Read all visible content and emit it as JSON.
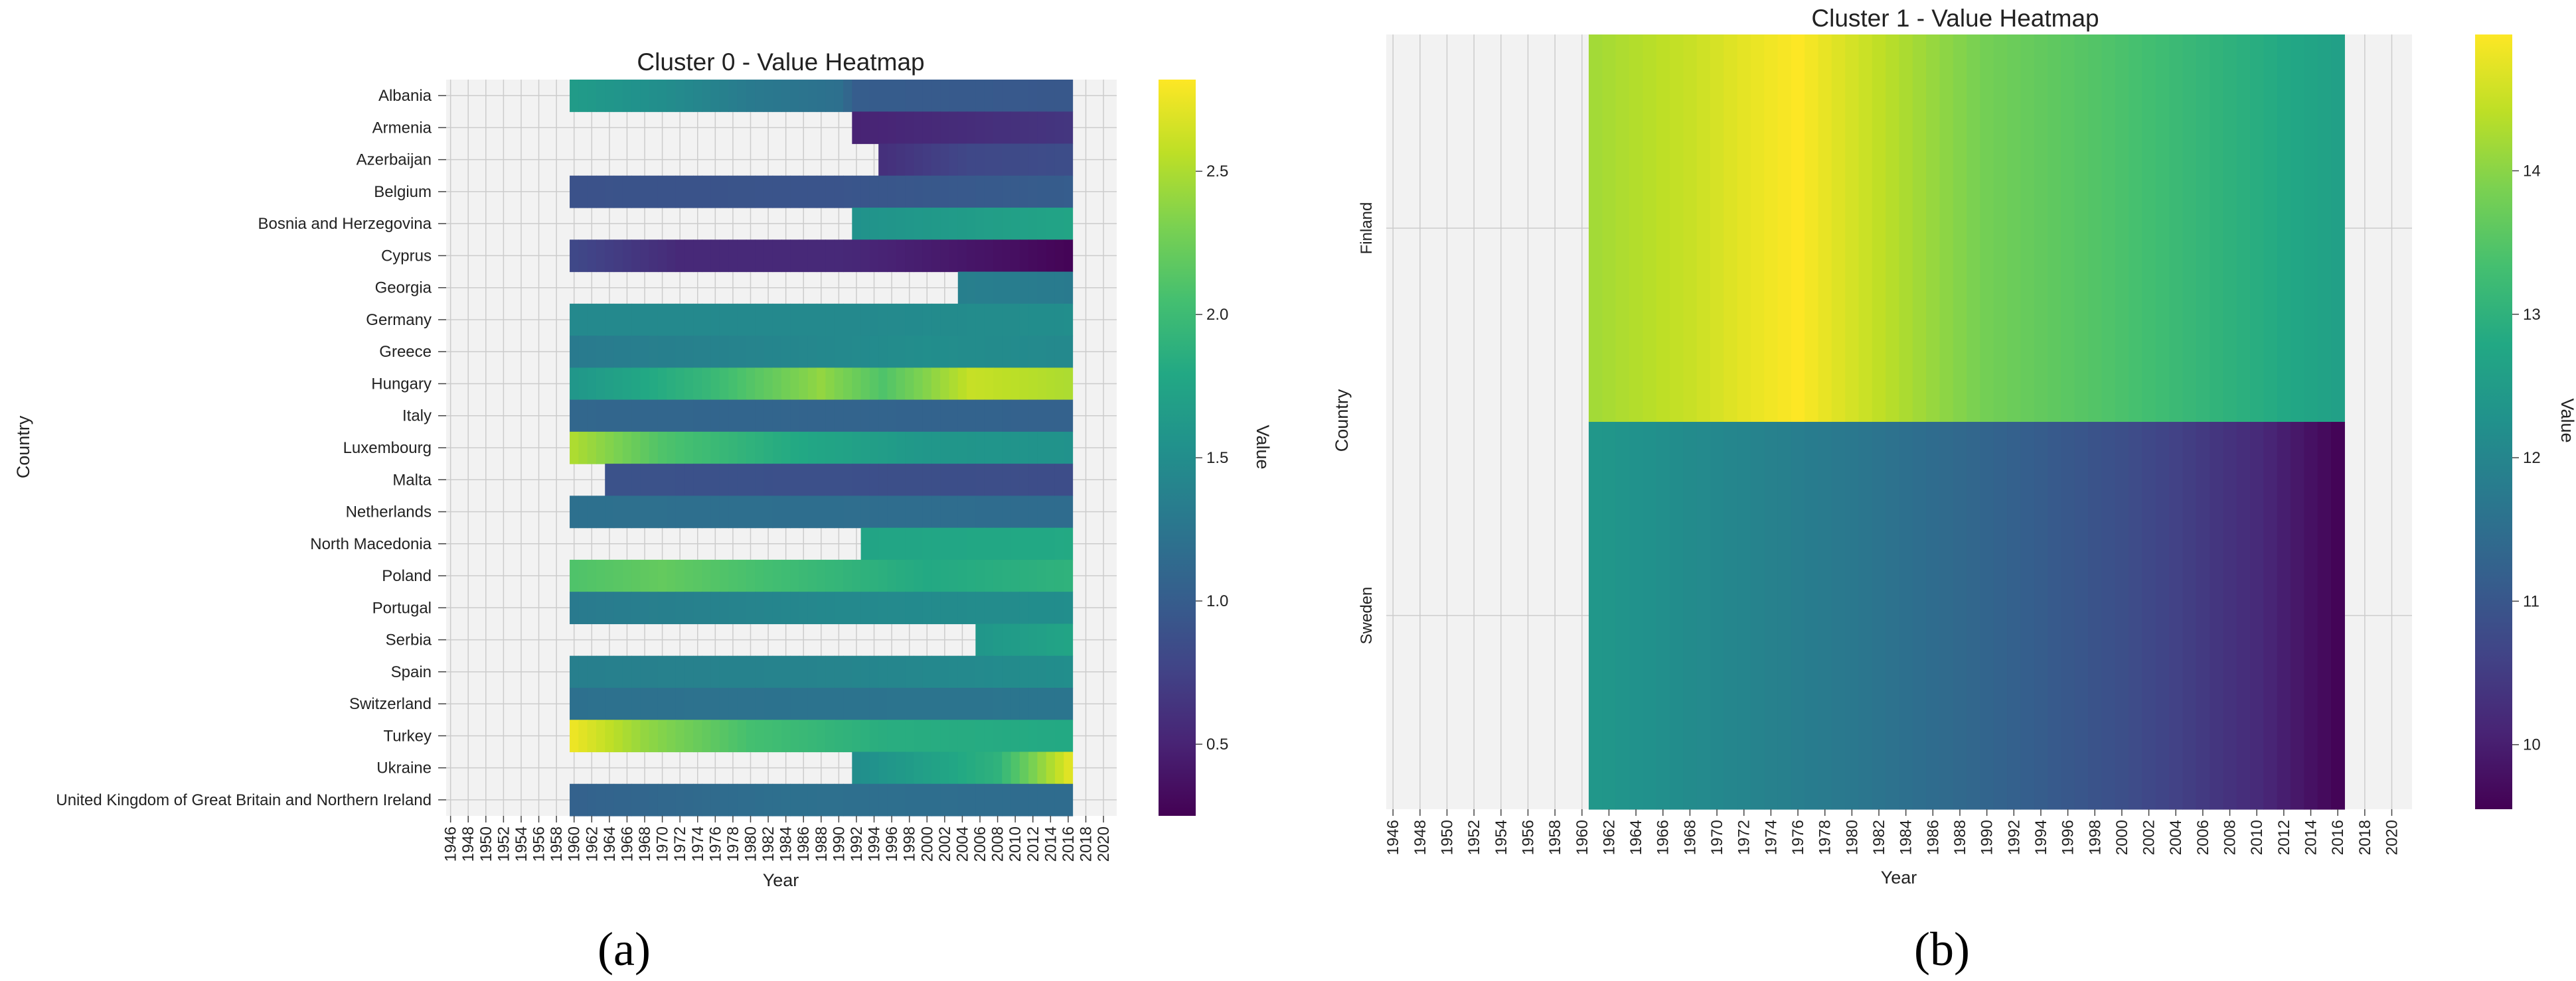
{
  "figure": {
    "panel_labels": [
      "(a)",
      "(b)"
    ]
  },
  "chart_data": [
    {
      "type": "heatmap",
      "title": "Cluster 0 - Value Heatmap",
      "xlabel": "Year",
      "ylabel": "Country",
      "colorbar_label": "Value",
      "colormap": "viridis",
      "vmin": 0.25,
      "vmax": 2.82,
      "colorbar_ticks": [
        "0.5",
        "1.0",
        "1.5",
        "2.0",
        "2.5"
      ],
      "colorbar_tick_values": [
        0.5,
        1.0,
        1.5,
        2.0,
        2.5
      ],
      "year_range": [
        1946,
        2021
      ],
      "x_tick_labels": [
        "1946",
        "1948",
        "1950",
        "1952",
        "1954",
        "1956",
        "1958",
        "1960",
        "1962",
        "1964",
        "1966",
        "1968",
        "1970",
        "1972",
        "1974",
        "1976",
        "1978",
        "1980",
        "1982",
        "1984",
        "1986",
        "1988",
        "1990",
        "1992",
        "1994",
        "1996",
        "1998",
        "2000",
        "2002",
        "2004",
        "2006",
        "2008",
        "2010",
        "2012",
        "2014",
        "2016",
        "2018",
        "2020"
      ],
      "grid": true,
      "missing_color": "#f2f2f2",
      "countries": [
        "Albania",
        "Armenia",
        "Azerbaijan",
        "Belgium",
        "Bosnia and Herzegovina",
        "Cyprus",
        "Georgia",
        "Germany",
        "Greece",
        "Hungary",
        "Italy",
        "Luxembourg",
        "Malta",
        "Netherlands",
        "North Macedonia",
        "Poland",
        "Portugal",
        "Serbia",
        "Spain",
        "Switzerland",
        "Turkey",
        "Ukraine",
        "United Kingdom of Great Britain and Northern Ireland"
      ],
      "series": [
        {
          "start": 1960,
          "end": 2016,
          "keyframes": [
            [
              1960,
              1.65
            ],
            [
              1970,
              1.5
            ],
            [
              1980,
              1.3
            ],
            [
              1990,
              1.2
            ],
            [
              1992,
              1.0
            ],
            [
              2016,
              0.95
            ]
          ]
        },
        {
          "start": 1992,
          "end": 2016,
          "keyframes": [
            [
              1992,
              0.5
            ],
            [
              2000,
              0.55
            ],
            [
              2016,
              0.65
            ]
          ]
        },
        {
          "start": 1995,
          "end": 2016,
          "keyframes": [
            [
              1995,
              0.6
            ],
            [
              2005,
              0.8
            ],
            [
              2016,
              0.85
            ]
          ]
        },
        {
          "start": 1960,
          "end": 2016,
          "keyframes": [
            [
              1960,
              0.9
            ],
            [
              1990,
              0.92
            ],
            [
              2016,
              1.0
            ]
          ]
        },
        {
          "start": 1992,
          "end": 2016,
          "keyframes": [
            [
              1992,
              1.55
            ],
            [
              2004,
              1.65
            ],
            [
              2016,
              1.75
            ]
          ]
        },
        {
          "start": 1960,
          "end": 2016,
          "keyframes": [
            [
              1960,
              0.8
            ],
            [
              1972,
              0.55
            ],
            [
              1990,
              0.55
            ],
            [
              2000,
              0.45
            ],
            [
              2010,
              0.35
            ],
            [
              2016,
              0.27
            ]
          ]
        },
        {
          "start": 2004,
          "end": 2016,
          "keyframes": [
            [
              2004,
              1.35
            ],
            [
              2016,
              1.3
            ]
          ]
        },
        {
          "start": 1960,
          "end": 2016,
          "keyframes": [
            [
              1960,
              1.45
            ],
            [
              1990,
              1.45
            ],
            [
              2016,
              1.5
            ]
          ]
        },
        {
          "start": 1960,
          "end": 2016,
          "keyframes": [
            [
              1960,
              1.3
            ],
            [
              1980,
              1.4
            ],
            [
              2000,
              1.5
            ],
            [
              2016,
              1.45
            ]
          ]
        },
        {
          "start": 1960,
          "end": 2016,
          "keyframes": [
            [
              1960,
              1.6
            ],
            [
              1975,
              1.95
            ],
            [
              1988,
              2.4
            ],
            [
              1995,
              2.1
            ],
            [
              2005,
              2.6
            ],
            [
              2016,
              2.5
            ]
          ]
        },
        {
          "start": 1960,
          "end": 2016,
          "keyframes": [
            [
              1960,
              1.1
            ],
            [
              2016,
              1.05
            ]
          ]
        },
        {
          "start": 1960,
          "end": 2016,
          "keyframes": [
            [
              1960,
              2.5
            ],
            [
              1970,
              2.1
            ],
            [
              1985,
              1.8
            ],
            [
              2000,
              1.6
            ],
            [
              2016,
              1.55
            ]
          ]
        },
        {
          "start": 1964,
          "end": 2016,
          "keyframes": [
            [
              1964,
              0.9
            ],
            [
              2016,
              0.85
            ]
          ]
        },
        {
          "start": 1960,
          "end": 2016,
          "keyframes": [
            [
              1960,
              1.2
            ],
            [
              2016,
              1.15
            ]
          ]
        },
        {
          "start": 1993,
          "end": 2016,
          "keyframes": [
            [
              1993,
              1.75
            ],
            [
              2016,
              1.8
            ]
          ]
        },
        {
          "start": 1960,
          "end": 2016,
          "keyframes": [
            [
              1960,
              2.1
            ],
            [
              1970,
              2.2
            ],
            [
              1985,
              2.0
            ],
            [
              2000,
              1.8
            ],
            [
              2016,
              1.9
            ]
          ]
        },
        {
          "start": 1960,
          "end": 2016,
          "keyframes": [
            [
              1960,
              1.3
            ],
            [
              1990,
              1.45
            ],
            [
              2016,
              1.5
            ]
          ]
        },
        {
          "start": 2006,
          "end": 2016,
          "keyframes": [
            [
              2006,
              1.6
            ],
            [
              2016,
              1.75
            ]
          ]
        },
        {
          "start": 1960,
          "end": 2016,
          "keyframes": [
            [
              1960,
              1.35
            ],
            [
              1990,
              1.4
            ],
            [
              2016,
              1.5
            ]
          ]
        },
        {
          "start": 1960,
          "end": 2016,
          "keyframes": [
            [
              1960,
              1.2
            ],
            [
              2016,
              1.25
            ]
          ]
        },
        {
          "start": 1960,
          "end": 2016,
          "keyframes": [
            [
              1960,
              2.75
            ],
            [
              1968,
              2.4
            ],
            [
              1980,
              2.05
            ],
            [
              1995,
              1.85
            ],
            [
              2016,
              1.8
            ]
          ]
        },
        {
          "start": 1992,
          "end": 2016,
          "keyframes": [
            [
              1992,
              1.5
            ],
            [
              2000,
              1.7
            ],
            [
              2008,
              1.9
            ],
            [
              2016,
              2.7
            ]
          ]
        },
        {
          "start": 1960,
          "end": 2016,
          "keyframes": [
            [
              1960,
              1.05
            ],
            [
              1985,
              1.2
            ],
            [
              2016,
              1.15
            ]
          ]
        }
      ]
    },
    {
      "type": "heatmap",
      "title": "Cluster 1 - Value Heatmap",
      "xlabel": "Year",
      "ylabel": "Country",
      "colorbar_label": "Value",
      "colormap": "viridis",
      "vmin": 9.55,
      "vmax": 14.95,
      "colorbar_ticks": [
        "10",
        "11",
        "12",
        "13",
        "14"
      ],
      "colorbar_tick_values": [
        10,
        11,
        12,
        13,
        14
      ],
      "year_range": [
        1946,
        2021
      ],
      "x_tick_labels": [
        "1946",
        "1948",
        "1950",
        "1952",
        "1954",
        "1956",
        "1958",
        "1960",
        "1962",
        "1964",
        "1966",
        "1968",
        "1970",
        "1972",
        "1974",
        "1976",
        "1978",
        "1980",
        "1982",
        "1984",
        "1986",
        "1988",
        "1990",
        "1992",
        "1994",
        "1996",
        "1998",
        "2000",
        "2002",
        "2004",
        "2006",
        "2008",
        "2010",
        "2012",
        "2014",
        "2016",
        "2018",
        "2020"
      ],
      "grid": true,
      "missing_color": "#f2f2f2",
      "countries": [
        "Finland",
        "Sweden"
      ],
      "series": [
        {
          "start": 1961,
          "end": 2016,
          "keyframes": [
            [
              1961,
              14.2
            ],
            [
              1968,
              14.5
            ],
            [
              1972,
              14.75
            ],
            [
              1976,
              14.95
            ],
            [
              1980,
              14.6
            ],
            [
              1986,
              14.1
            ],
            [
              1990,
              13.8
            ],
            [
              2000,
              13.4
            ],
            [
              2010,
              12.9
            ],
            [
              2016,
              12.6
            ]
          ]
        },
        {
          "start": 1961,
          "end": 2016,
          "keyframes": [
            [
              1961,
              12.4
            ],
            [
              1970,
              12.05
            ],
            [
              1980,
              11.7
            ],
            [
              1990,
              11.3
            ],
            [
              2000,
              10.85
            ],
            [
              2010,
              10.2
            ],
            [
              2016,
              9.6
            ]
          ]
        }
      ]
    }
  ]
}
